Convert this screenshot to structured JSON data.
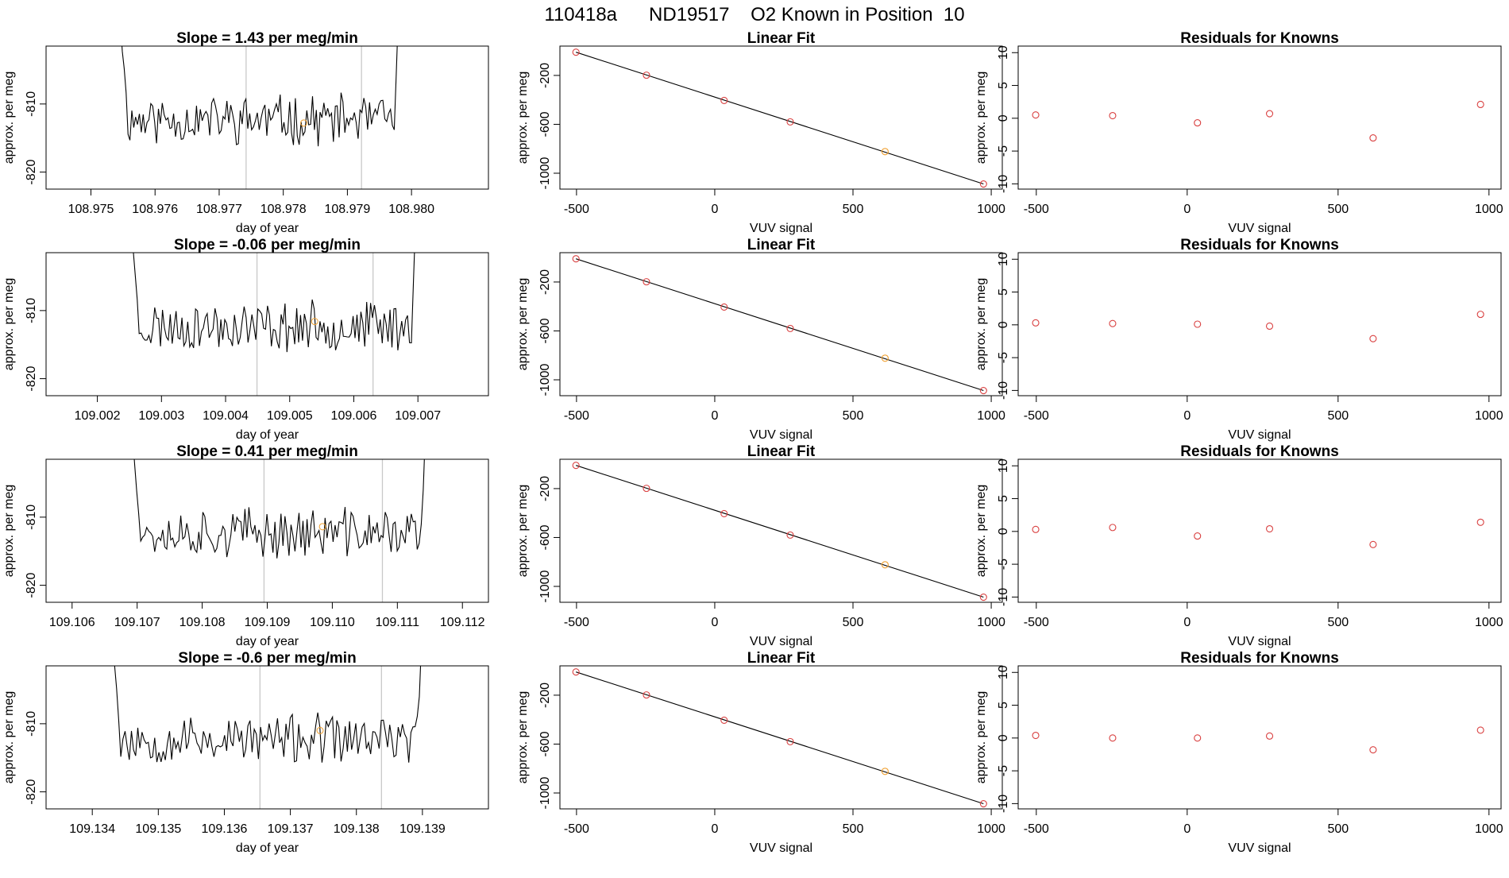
{
  "figure": {
    "title": "110418a      ND19517    O2 Known in Position  10"
  },
  "colors": {
    "trace": "#000000",
    "marker_highlight": "#f0a030",
    "residual": "#d94040",
    "vline": "#c8c8c8",
    "axis": "#000000"
  },
  "chart_data": [
    {
      "type": "line",
      "panel": "time-series",
      "row": 1,
      "title": "Slope =  1.43  per meg/min",
      "xlabel": "day of year",
      "ylabel": "approx. per meg",
      "xlim": [
        108.9743,
        108.9812
      ],
      "ylim": [
        -822.5,
        -801.5
      ],
      "xticks": [
        "108.975",
        "108.976",
        "108.977",
        "108.978",
        "108.979",
        "108.980"
      ],
      "yticks": [
        "-810",
        "-820"
      ],
      "trace_start": 108.9754,
      "trace_end": 108.97985,
      "vlines": [
        108.97742,
        108.97922
      ],
      "highlight": [
        108.97832,
        -812.8
      ],
      "seed": 11
    },
    {
      "type": "scatter",
      "panel": "linear-fit",
      "row": 1,
      "title": "Linear Fit",
      "xlabel": "VUV signal",
      "ylabel": "approx. per meg",
      "xlim": [
        -560,
        1040
      ],
      "ylim": [
        -1130,
        40
      ],
      "xticks": [
        "-500",
        "0",
        "500",
        "1000"
      ],
      "yticks": [
        "-200",
        "-600",
        "-1000"
      ],
      "x": [
        -502,
        -247,
        34,
        273,
        616,
        972
      ],
      "y": [
        -10,
        -198,
        -405,
        -580,
        -823,
        -1088
      ],
      "highlight_index": 4,
      "fit": [
        [
          -502,
          -10
        ],
        [
          972,
          -1088
        ]
      ]
    },
    {
      "type": "scatter",
      "panel": "residuals",
      "row": 1,
      "title": "Residuals for Knowns",
      "xlabel": "VUV signal",
      "ylabel": "approx. per meg",
      "xlim": [
        -560,
        1040
      ],
      "ylim": [
        -10.8,
        11
      ],
      "xticks": [
        "-500",
        "0",
        "500",
        "1000"
      ],
      "yticks": [
        "10",
        "5",
        "0",
        "-5",
        "-10"
      ],
      "x": [
        -502,
        -247,
        34,
        273,
        616,
        972
      ],
      "y": [
        0.5,
        0.4,
        -0.7,
        0.7,
        -3.0,
        2.1
      ]
    },
    {
      "type": "line",
      "panel": "time-series",
      "row": 2,
      "title": "Slope =  -0.06  per meg/min",
      "xlabel": "day of year",
      "ylabel": "approx. per meg",
      "xlim": [
        109.0012,
        109.0081
      ],
      "ylim": [
        -822.5,
        -801.5
      ],
      "xticks": [
        "109.002",
        "109.003",
        "109.004",
        "109.005",
        "109.006",
        "109.007"
      ],
      "yticks": [
        "-810",
        "-820"
      ],
      "trace_start": 109.00247,
      "trace_end": 109.00702,
      "vlines": [
        109.00449,
        109.0063
      ],
      "highlight": [
        109.00539,
        -811.6
      ],
      "seed": 23
    },
    {
      "type": "scatter",
      "panel": "linear-fit",
      "row": 2,
      "title": "Linear Fit",
      "xlabel": "VUV signal",
      "ylabel": "approx. per meg",
      "xlim": [
        -560,
        1040
      ],
      "ylim": [
        -1130,
        40
      ],
      "xticks": [
        "-500",
        "0",
        "500",
        "1000"
      ],
      "yticks": [
        "-200",
        "-600",
        "-1000"
      ],
      "x": [
        -502,
        -247,
        34,
        273,
        616,
        972
      ],
      "y": [
        -10,
        -198,
        -405,
        -580,
        -823,
        -1088
      ],
      "highlight_index": 4,
      "fit": [
        [
          -502,
          -10
        ],
        [
          972,
          -1088
        ]
      ]
    },
    {
      "type": "scatter",
      "panel": "residuals",
      "row": 2,
      "title": "Residuals for Knowns",
      "xlabel": "VUV signal",
      "ylabel": "approx. per meg",
      "xlim": [
        -560,
        1040
      ],
      "ylim": [
        -10.8,
        11
      ],
      "xticks": [
        "-500",
        "0",
        "500",
        "1000"
      ],
      "yticks": [
        "10",
        "5",
        "0",
        "-5",
        "-10"
      ],
      "x": [
        -502,
        -247,
        34,
        273,
        616,
        972
      ],
      "y": [
        0.3,
        0.2,
        0.1,
        -0.2,
        -2.1,
        1.6
      ]
    },
    {
      "type": "line",
      "panel": "time-series",
      "row": 3,
      "title": "Slope =  0.41  per meg/min",
      "xlabel": "day of year",
      "ylabel": "approx. per meg",
      "xlim": [
        109.1056,
        109.1124
      ],
      "ylim": [
        -822.5,
        -801.5
      ],
      "xticks": [
        "109.106",
        "109.107",
        "109.108",
        "109.109",
        "109.110",
        "109.111",
        "109.112"
      ],
      "yticks": [
        "-810",
        "-820"
      ],
      "trace_start": 109.10687,
      "trace_end": 109.11149,
      "vlines": [
        109.10895,
        109.11077
      ],
      "highlight": [
        109.10985,
        -811.4
      ],
      "seed": 37
    },
    {
      "type": "scatter",
      "panel": "linear-fit",
      "row": 3,
      "title": "Linear Fit",
      "xlabel": "VUV signal",
      "ylabel": "approx. per meg",
      "xlim": [
        -560,
        1040
      ],
      "ylim": [
        -1130,
        40
      ],
      "xticks": [
        "-500",
        "0",
        "500",
        "1000"
      ],
      "yticks": [
        "-200",
        "-600",
        "-1000"
      ],
      "x": [
        -502,
        -247,
        34,
        273,
        616,
        972
      ],
      "y": [
        -10,
        -198,
        -405,
        -580,
        -823,
        -1088
      ],
      "highlight_index": 4,
      "fit": [
        [
          -502,
          -10
        ],
        [
          972,
          -1088
        ]
      ]
    },
    {
      "type": "scatter",
      "panel": "residuals",
      "row": 3,
      "title": "Residuals for Knowns",
      "xlabel": "VUV signal",
      "ylabel": "approx. per meg",
      "xlim": [
        -560,
        1040
      ],
      "ylim": [
        -10.8,
        11
      ],
      "xticks": [
        "-500",
        "0",
        "500",
        "1000"
      ],
      "yticks": [
        "10",
        "5",
        "0",
        "-5",
        "-10"
      ],
      "x": [
        -502,
        -247,
        34,
        273,
        616,
        972
      ],
      "y": [
        0.3,
        0.6,
        -0.7,
        0.4,
        -2.0,
        1.4
      ]
    },
    {
      "type": "line",
      "panel": "time-series",
      "row": 4,
      "title": "Slope =  -0.6  per meg/min",
      "xlabel": "day of year",
      "ylabel": "approx. per meg",
      "xlim": [
        109.1333,
        109.14
      ],
      "ylim": [
        -822.5,
        -801.5
      ],
      "xticks": [
        "109.134",
        "109.135",
        "109.136",
        "109.137",
        "109.138",
        "109.139"
      ],
      "yticks": [
        "-810",
        "-820"
      ],
      "trace_start": 109.13424,
      "trace_end": 109.13905,
      "vlines": [
        109.13654,
        109.13838
      ],
      "highlight": [
        109.13745,
        -811.0
      ],
      "seed": 53
    },
    {
      "type": "scatter",
      "panel": "linear-fit",
      "row": 4,
      "title": "Linear Fit",
      "xlabel": "VUV signal",
      "ylabel": "approx. per meg",
      "xlim": [
        -560,
        1040
      ],
      "ylim": [
        -1130,
        40
      ],
      "xticks": [
        "-500",
        "0",
        "500",
        "1000"
      ],
      "yticks": [
        "-200",
        "-600",
        "-1000"
      ],
      "x": [
        -502,
        -247,
        34,
        273,
        616,
        972
      ],
      "y": [
        -10,
        -198,
        -405,
        -580,
        -823,
        -1088
      ],
      "highlight_index": 4,
      "fit": [
        [
          -502,
          -10
        ],
        [
          972,
          -1088
        ]
      ]
    },
    {
      "type": "scatter",
      "panel": "residuals",
      "row": 4,
      "title": "Residuals for Knowns",
      "xlabel": "VUV signal",
      "ylabel": "approx. per meg",
      "xlim": [
        -560,
        1040
      ],
      "ylim": [
        -10.8,
        11
      ],
      "xticks": [
        "-500",
        "0",
        "500",
        "1000"
      ],
      "yticks": [
        "10",
        "5",
        "0",
        "-5",
        "-10"
      ],
      "x": [
        -502,
        -247,
        34,
        273,
        616,
        972
      ],
      "y": [
        0.4,
        0.0,
        0.0,
        0.3,
        -1.8,
        1.2
      ]
    }
  ]
}
